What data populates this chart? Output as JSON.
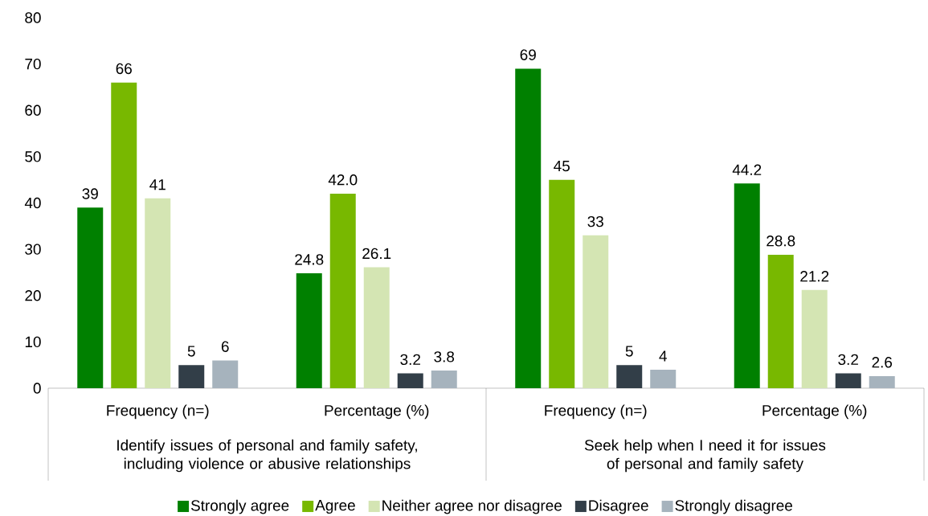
{
  "chart_data": {
    "type": "bar",
    "categories": [
      "Frequency (n=)",
      "Percentage (%)",
      "Frequency (n=)",
      "Percentage (%)"
    ],
    "series": [
      {
        "name": "Strongly agree",
        "color": "#008000",
        "values": [
          39,
          24.8,
          69,
          44.2
        ],
        "value_labels": [
          "39",
          "24.8",
          "69",
          "44.2"
        ]
      },
      {
        "name": "Agree",
        "color": "#78b800",
        "values": [
          66,
          42.0,
          45,
          28.8
        ],
        "value_labels": [
          "66",
          "42.0",
          "45",
          "28.8"
        ]
      },
      {
        "name": "Neither agree nor disagree",
        "color": "#d4e5b3",
        "values": [
          41,
          26.1,
          33,
          21.2
        ],
        "value_labels": [
          "41",
          "26.1",
          "33",
          "21.2"
        ]
      },
      {
        "name": "Disagree",
        "color": "#323e48",
        "values": [
          5,
          3.2,
          5,
          3.2
        ],
        "value_labels": [
          "5",
          "3.2",
          "5",
          "3.2"
        ]
      },
      {
        "name": "Strongly disagree",
        "color": "#a6b3bd",
        "values": [
          6,
          3.8,
          4,
          2.6
        ],
        "value_labels": [
          "6",
          "3.8",
          "4",
          "2.6"
        ]
      }
    ],
    "annotations": [
      "Identify issues of personal and family safety, including violence or abusive relationships",
      "Seek help when I need it for issues of personal and family safety"
    ],
    "ylim": [
      0,
      80
    ],
    "yticks": [
      0,
      10,
      20,
      30,
      40,
      50,
      60,
      70,
      80
    ],
    "legend": "bottom",
    "grid": false
  }
}
